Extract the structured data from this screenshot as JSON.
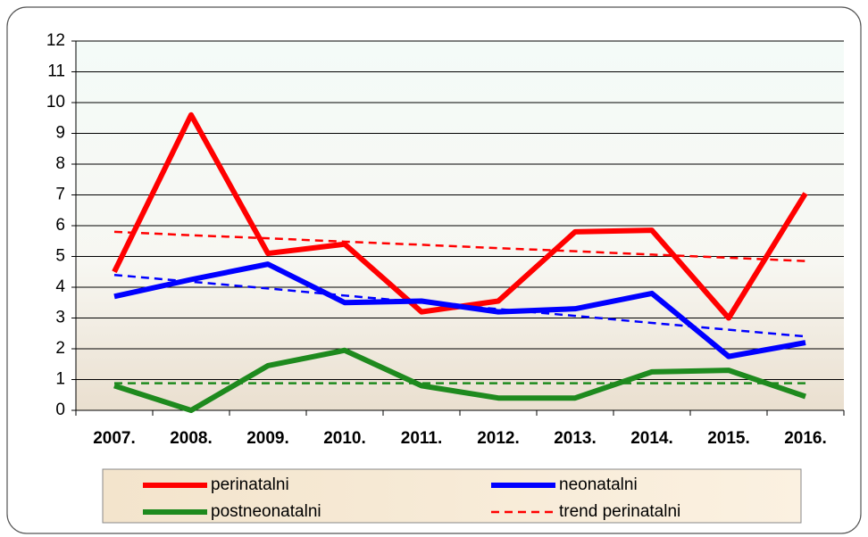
{
  "chart_data": {
    "type": "line",
    "categories": [
      "2007.",
      "2008.",
      "2009.",
      "2010.",
      "2011.",
      "2012.",
      "2013.",
      "2014.",
      "2015.",
      "2016."
    ],
    "series": [
      {
        "name": "perinatalni",
        "color": "#ff0000",
        "dash": false,
        "values": [
          4.5,
          9.6,
          5.1,
          5.4,
          3.2,
          3.55,
          5.8,
          5.85,
          3.0,
          7.05
        ]
      },
      {
        "name": "neonatalni",
        "color": "#0000ff",
        "dash": false,
        "values": [
          3.7,
          4.25,
          4.75,
          3.5,
          3.55,
          3.2,
          3.3,
          3.8,
          1.75,
          2.2
        ]
      },
      {
        "name": "postneonatalni",
        "color": "#1e8a1e",
        "dash": false,
        "values": [
          0.8,
          0.0,
          1.45,
          1.95,
          0.8,
          0.4,
          0.4,
          1.25,
          1.3,
          0.45
        ]
      },
      {
        "name": "trend perinatalni",
        "color": "#ff0000",
        "dash": true,
        "values": [
          5.8,
          5.69,
          5.59,
          5.48,
          5.38,
          5.27,
          5.17,
          5.06,
          4.96,
          4.85
        ]
      },
      {
        "color": "#0000ff",
        "dash": true,
        "values": [
          4.4,
          4.18,
          3.96,
          3.73,
          3.51,
          3.29,
          3.07,
          2.84,
          2.62,
          2.4
        ]
      },
      {
        "color": "#1e8a1e",
        "dash": true,
        "values": [
          0.88,
          0.88,
          0.88,
          0.88,
          0.88,
          0.88,
          0.88,
          0.88,
          0.88,
          0.88
        ]
      }
    ],
    "ylim": [
      0,
      12
    ],
    "yticks": [
      0,
      1,
      2,
      3,
      4,
      5,
      6,
      7,
      8,
      9,
      10,
      11,
      12
    ],
    "grid": true
  }
}
